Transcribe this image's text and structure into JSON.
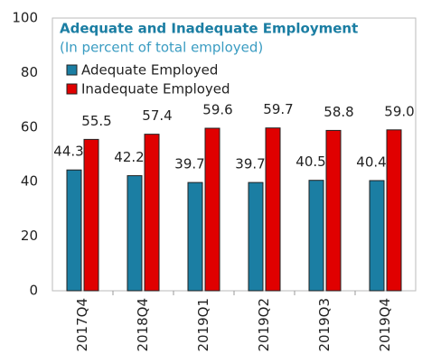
{
  "chart_data": {
    "type": "bar",
    "title": "Adequate and Inadequate Employment",
    "subtitle": "(In percent of total employed)",
    "categories": [
      "2017Q4",
      "2018Q4",
      "2019Q1",
      "2019Q2",
      "2019Q3",
      "2019Q4"
    ],
    "series": [
      {
        "name": "Adequate Employed",
        "color": "#1b7ea3",
        "values": [
          44.3,
          42.2,
          39.7,
          39.7,
          40.5,
          40.4
        ],
        "value_labels": [
          "44.3",
          "42.2",
          "39.7",
          "39.7",
          "40.5",
          "40.4"
        ]
      },
      {
        "name": "Inadequate Employed",
        "color": "#e00000",
        "values": [
          55.5,
          57.4,
          59.6,
          59.7,
          58.8,
          59.0
        ],
        "value_labels": [
          "55.5",
          "57.4",
          "59.6",
          "59.7",
          "58.8",
          "59.0"
        ]
      }
    ],
    "ylim": [
      0,
      100
    ],
    "yticks": [
      0,
      20,
      40,
      60,
      80,
      100
    ],
    "grid": false,
    "legend": "upper left"
  }
}
